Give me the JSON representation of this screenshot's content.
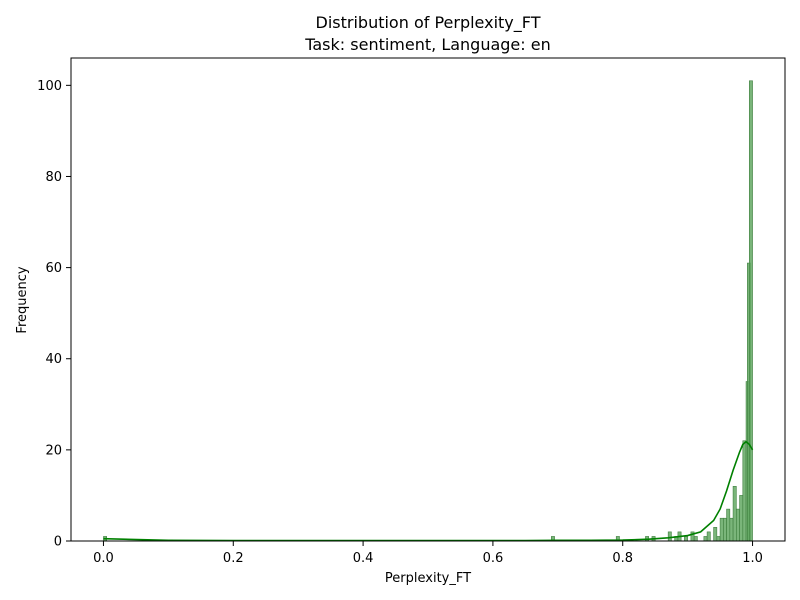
{
  "chart_data": {
    "type": "histogram",
    "title": "Distribution of Perplexity_FT",
    "subtitle": "Task: sentiment, Language: en",
    "xlabel": "Perplexity_FT",
    "ylabel": "Frequency",
    "xlim": [
      -0.05,
      1.05
    ],
    "ylim": [
      0,
      106
    ],
    "xticks": [
      "0.0",
      "0.2",
      "0.4",
      "0.6",
      "0.8",
      "1.0"
    ],
    "xtick_values": [
      0.0,
      0.2,
      0.4,
      0.6,
      0.8,
      1.0
    ],
    "yticks": [
      "0",
      "20",
      "40",
      "60",
      "80",
      "100"
    ],
    "ytick_values": [
      0,
      20,
      40,
      60,
      80,
      100
    ],
    "bin_width": 0.005,
    "bins": [
      {
        "x": 0.0,
        "count": 1
      },
      {
        "x": 0.69,
        "count": 1
      },
      {
        "x": 0.79,
        "count": 1
      },
      {
        "x": 0.835,
        "count": 1
      },
      {
        "x": 0.845,
        "count": 1
      },
      {
        "x": 0.87,
        "count": 2
      },
      {
        "x": 0.88,
        "count": 1
      },
      {
        "x": 0.885,
        "count": 2
      },
      {
        "x": 0.895,
        "count": 1
      },
      {
        "x": 0.905,
        "count": 2
      },
      {
        "x": 0.91,
        "count": 1
      },
      {
        "x": 0.925,
        "count": 1
      },
      {
        "x": 0.93,
        "count": 2
      },
      {
        "x": 0.94,
        "count": 3
      },
      {
        "x": 0.945,
        "count": 1
      },
      {
        "x": 0.95,
        "count": 5
      },
      {
        "x": 0.955,
        "count": 5
      },
      {
        "x": 0.96,
        "count": 7
      },
      {
        "x": 0.965,
        "count": 5
      },
      {
        "x": 0.97,
        "count": 12
      },
      {
        "x": 0.975,
        "count": 7
      },
      {
        "x": 0.98,
        "count": 10
      },
      {
        "x": 0.985,
        "count": 22
      },
      {
        "x": 0.99,
        "count": 35
      },
      {
        "x": 0.992,
        "count": 61
      },
      {
        "x": 0.995,
        "count": 101
      }
    ],
    "kde": {
      "x": [
        0.0,
        0.1,
        0.2,
        0.3,
        0.4,
        0.5,
        0.6,
        0.65,
        0.7,
        0.75,
        0.8,
        0.84,
        0.87,
        0.9,
        0.92,
        0.94,
        0.95,
        0.96,
        0.97,
        0.98,
        0.985,
        0.99,
        0.995,
        1.0
      ],
      "y": [
        0.5,
        0.15,
        0.1,
        0.1,
        0.1,
        0.1,
        0.1,
        0.1,
        0.15,
        0.15,
        0.2,
        0.4,
        0.7,
        1.2,
        2.0,
        4.5,
        7.0,
        11.0,
        15.5,
        19.5,
        21.2,
        21.8,
        21.2,
        20.0
      ]
    },
    "grid": false,
    "colors": {
      "bar_fill": "#63a863",
      "bar_stroke": "#3f7f3f",
      "kde_line": "#008000",
      "axis": "#000000"
    }
  }
}
